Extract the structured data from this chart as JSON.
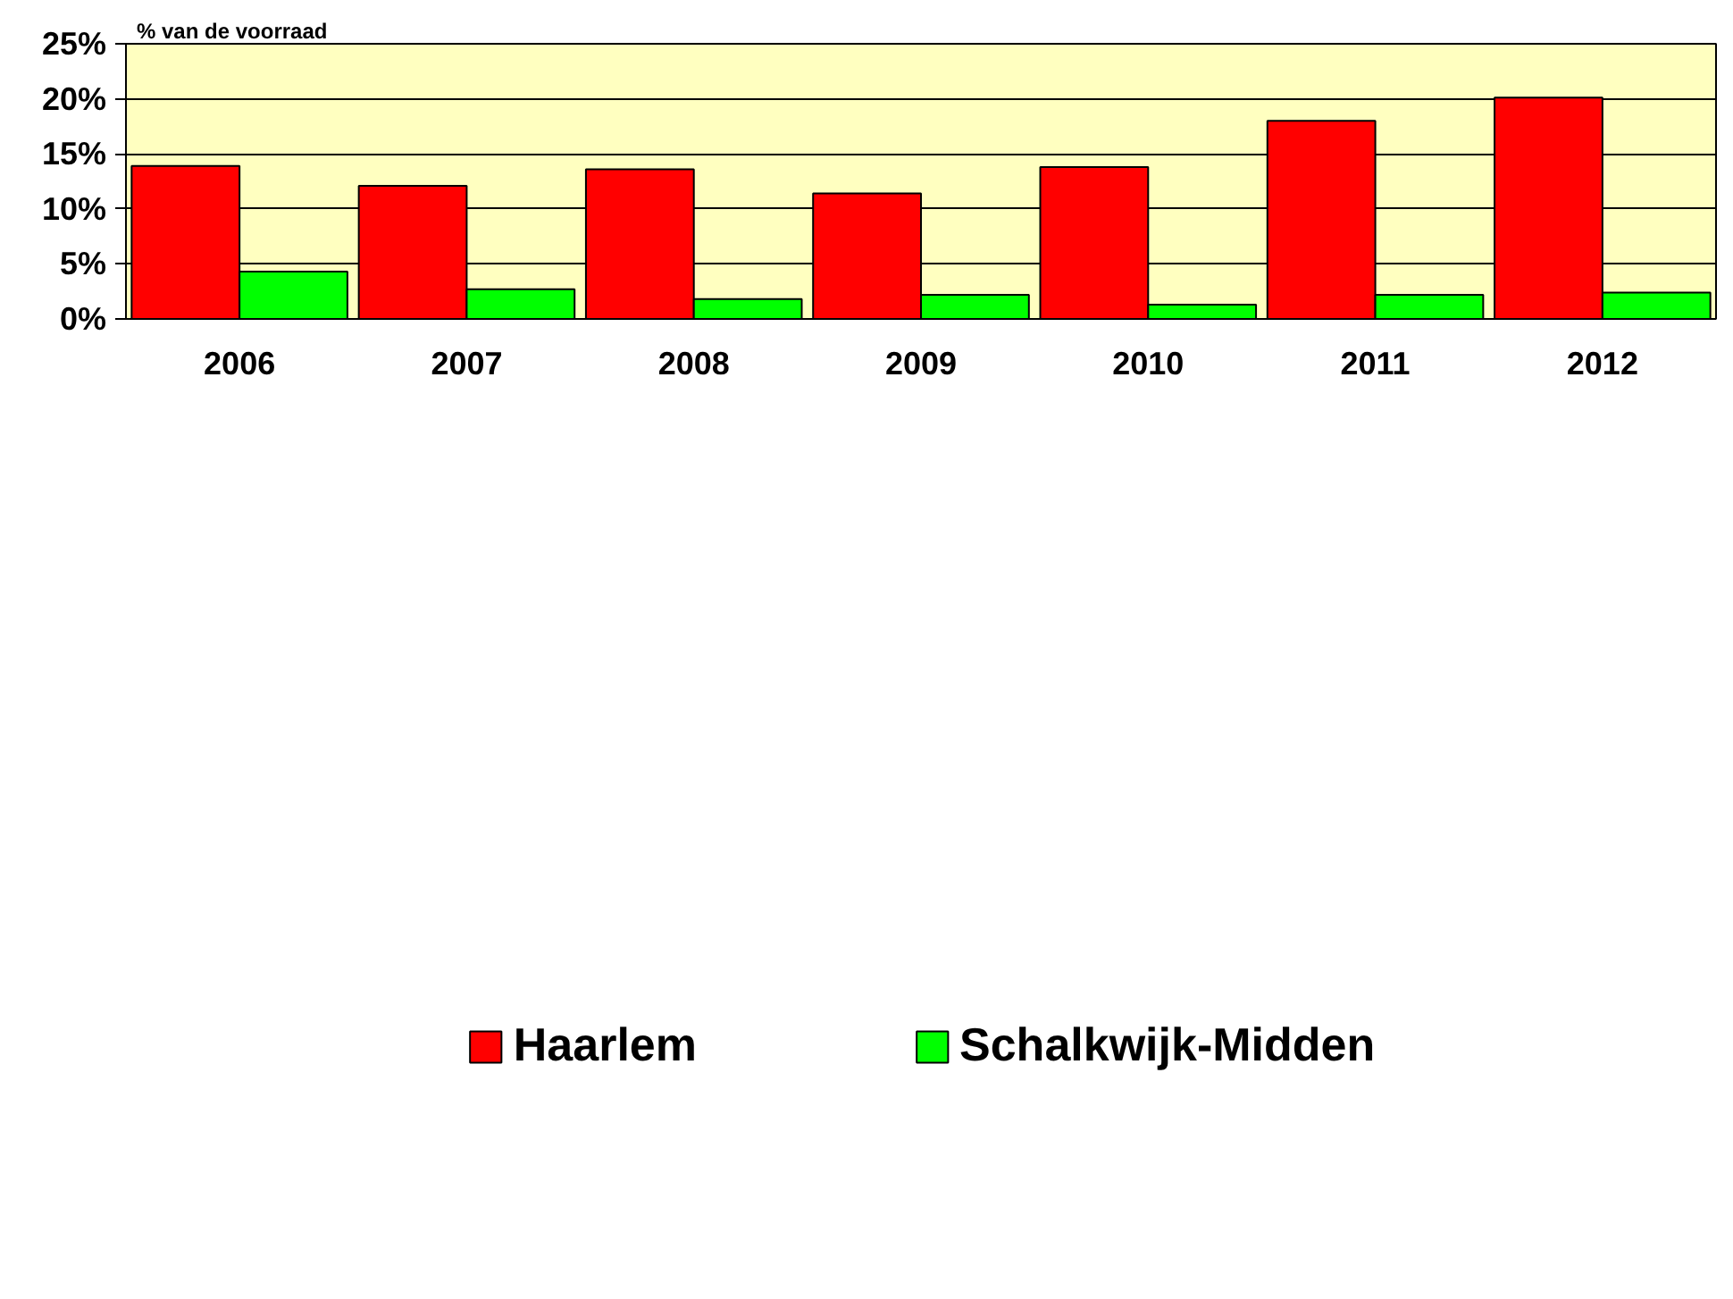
{
  "chart_data": {
    "type": "bar",
    "ylabel": "% van de voorraad",
    "categories": [
      "2006",
      "2007",
      "2008",
      "2009",
      "2010",
      "2011",
      "2012"
    ],
    "series": [
      {
        "name": "Haarlem",
        "color": "#ff0000",
        "values": [
          13.9,
          12.1,
          13.6,
          11.4,
          13.8,
          18.0,
          20.1
        ]
      },
      {
        "name": "Schalkwijk-Midden",
        "color": "#00ff00",
        "values": [
          4.3,
          2.7,
          1.8,
          2.2,
          1.3,
          2.2,
          2.4
        ]
      }
    ],
    "ylim": [
      0,
      25
    ],
    "yticks": [
      {
        "value": 0,
        "label": "0%"
      },
      {
        "value": 5,
        "label": "5%"
      },
      {
        "value": 10,
        "label": "10%"
      },
      {
        "value": 15,
        "label": "15%"
      },
      {
        "value": 20,
        "label": "20%"
      },
      {
        "value": 25,
        "label": "25%"
      }
    ],
    "grid": "y",
    "legend": "bottom"
  }
}
